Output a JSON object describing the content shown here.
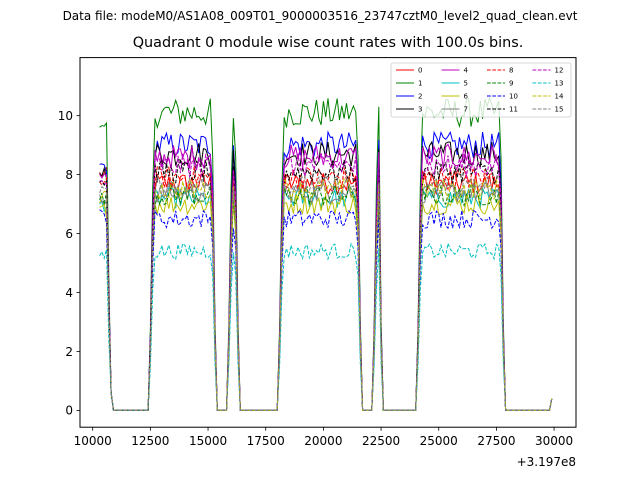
{
  "suptitle": "Data file: modeM0/AS1A08_009T01_9000003516_23747cztM0_level2_quad_clean.evt",
  "chart_data": {
    "type": "line",
    "title": "Quadrant 0 module wise count rates with 100.0s bins.",
    "xlabel": "",
    "ylabel": "",
    "x_offset_label": "+3.197e8",
    "xlim": [
      9450,
      30950
    ],
    "ylim": [
      -0.57,
      11.97
    ],
    "xticks": [
      10000,
      12500,
      15000,
      17500,
      20000,
      22500,
      25000,
      27500,
      30000
    ],
    "xtick_labels": [
      "10000",
      "12500",
      "15000",
      "17500",
      "20000",
      "22500",
      "25000",
      "27500",
      "30000"
    ],
    "yticks": [
      0,
      2,
      4,
      6,
      8,
      10
    ],
    "ytick_labels": [
      "0",
      "2",
      "4",
      "6",
      "8",
      "10"
    ],
    "grid": false,
    "legend_position": "top-right",
    "segments": [
      {
        "start": 10300,
        "end": 10800
      },
      {
        "start": 12500,
        "end": 15300
      },
      {
        "start": 15900,
        "end": 16300
      },
      {
        "start": 18100,
        "end": 21600
      },
      {
        "start": 22200,
        "end": 22500
      },
      {
        "start": 24100,
        "end": 27800
      },
      {
        "start": 29900,
        "end": 29950
      }
    ],
    "bin_width": 100,
    "series": [
      {
        "name": "0",
        "color": "#ff0000",
        "dash": "solid",
        "mean": 7.7,
        "first": 8.0
      },
      {
        "name": "1",
        "color": "#008000",
        "dash": "solid",
        "mean": 10.1,
        "first": 9.5
      },
      {
        "name": "2",
        "color": "#0000ff",
        "dash": "solid",
        "mean": 9.0,
        "first": 8.3
      },
      {
        "name": "3",
        "color": "#000000",
        "dash": "solid",
        "mean": 8.7,
        "first": 8.1
      },
      {
        "name": "4",
        "color": "#bf00bf",
        "dash": "solid",
        "mean": 8.6,
        "first": 7.9
      },
      {
        "name": "5",
        "color": "#00bfbf",
        "dash": "solid",
        "mean": 7.2,
        "first": 7.0
      },
      {
        "name": "6",
        "color": "#bfbf00",
        "dash": "solid",
        "mean": 7.0,
        "first": 6.8
      },
      {
        "name": "7",
        "color": "#808080",
        "dash": "solid",
        "mean": 7.4,
        "first": 7.1
      },
      {
        "name": "8",
        "color": "#ff0000",
        "dash": "dashed",
        "mean": 7.9,
        "first": 7.8
      },
      {
        "name": "9",
        "color": "#008000",
        "dash": "dashed",
        "mean": 7.3,
        "first": 7.2
      },
      {
        "name": "10",
        "color": "#0000ff",
        "dash": "dashed",
        "mean": 6.5,
        "first": 6.6
      },
      {
        "name": "11",
        "color": "#000000",
        "dash": "dashed",
        "mean": 8.1,
        "first": 7.8
      },
      {
        "name": "12",
        "color": "#bf00bf",
        "dash": "dashed",
        "mean": 8.3,
        "first": 7.7
      },
      {
        "name": "13",
        "color": "#00bfbf",
        "dash": "dashed",
        "mean": 5.4,
        "first": 5.3
      },
      {
        "name": "14",
        "color": "#bfbf00",
        "dash": "dashed",
        "mean": 7.5,
        "first": 7.2
      },
      {
        "name": "15",
        "color": "#808080",
        "dash": "dashed",
        "mean": 7.6,
        "first": 7.5
      }
    ]
  }
}
